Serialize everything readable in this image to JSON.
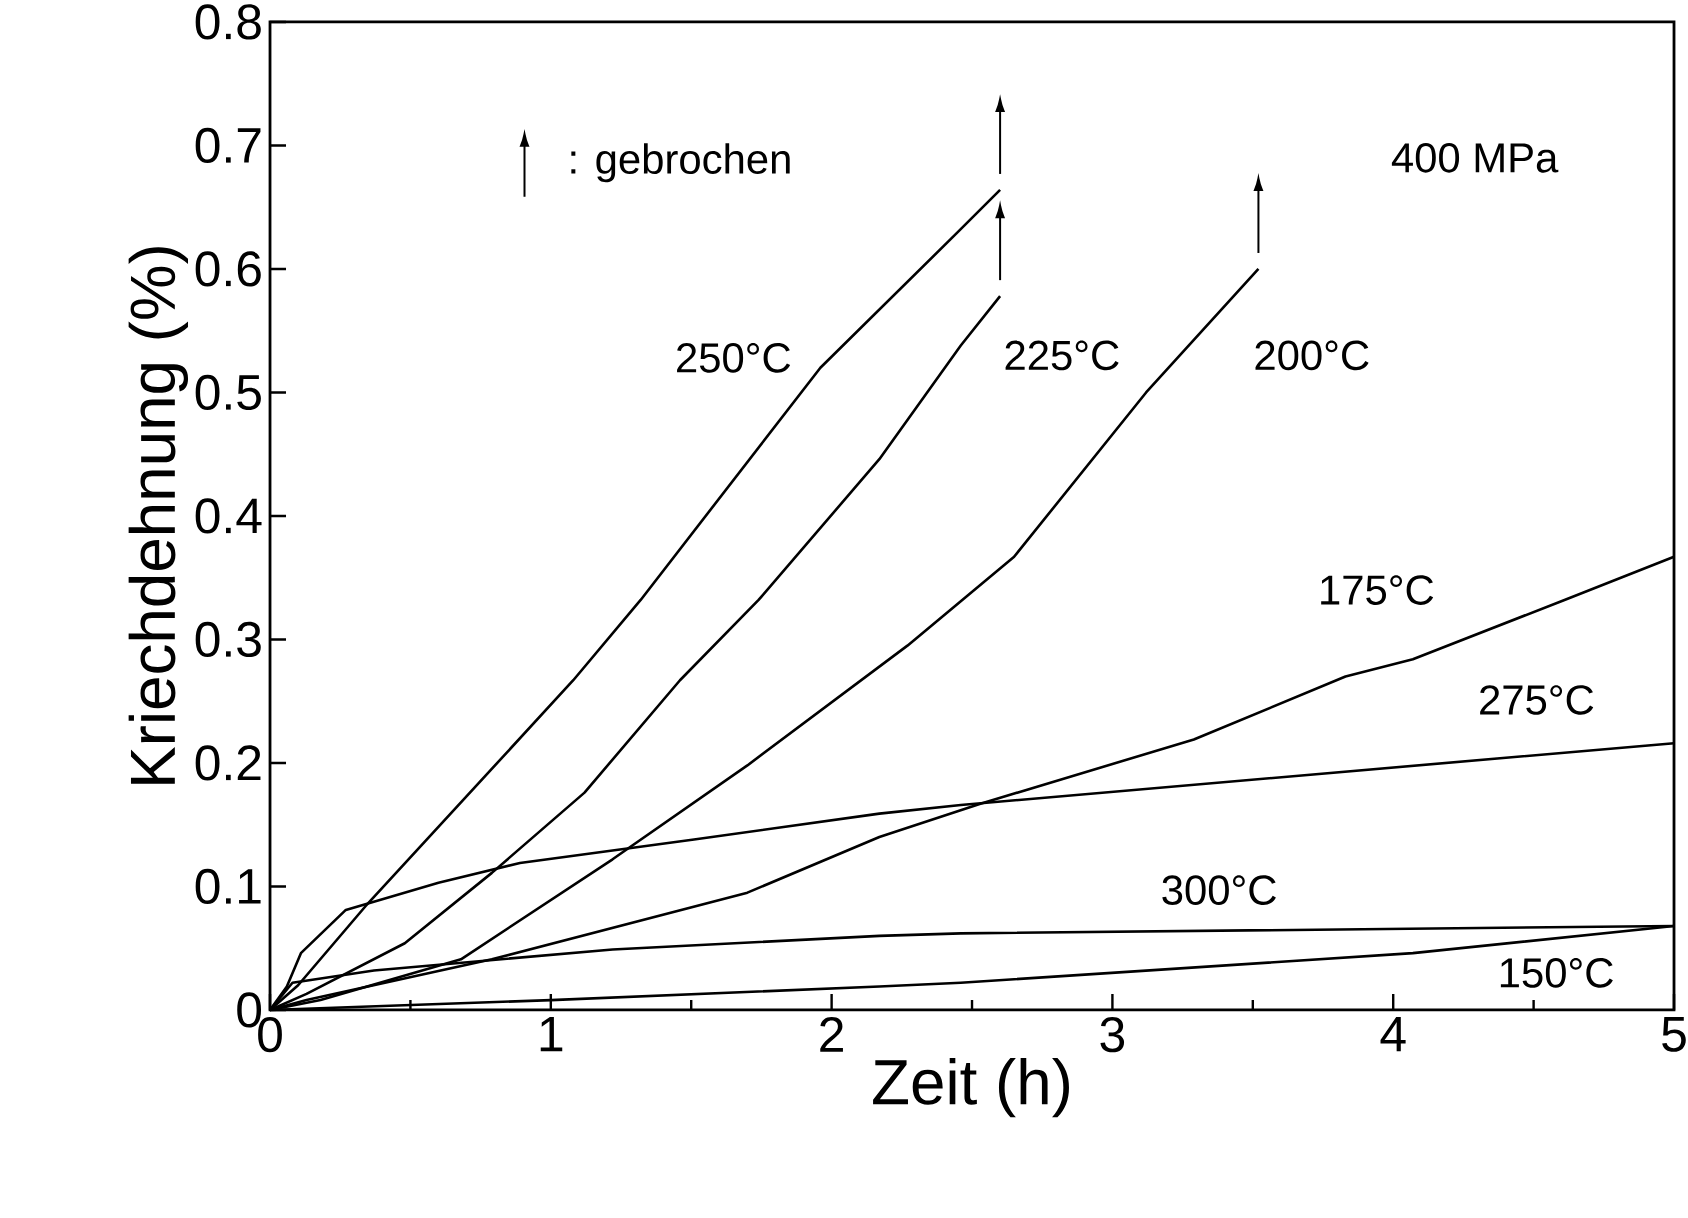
{
  "chart_data": {
    "type": "line",
    "xlabel": "Zeit (h)",
    "ylabel": "Kriechdehnung (%)",
    "xlim": [
      0,
      5
    ],
    "ylim": [
      0,
      0.8
    ],
    "xticks": [
      0,
      1,
      2,
      3,
      4,
      5
    ],
    "yticks": [
      0,
      0.1,
      0.2,
      0.3,
      0.4,
      0.5,
      0.6,
      0.7,
      0.8
    ],
    "grid": false,
    "marker": "none",
    "line_style": "solid",
    "annotations": [
      ": gebrochen",
      "400 MPa"
    ],
    "series": [
      {
        "name": "250°C",
        "color": "#000000",
        "x": [
          0,
          0.1,
          0.34,
          1.08,
          1.32,
          1.96,
          2.45,
          2.6
        ],
        "values": [
          0,
          0.02,
          0.084,
          0.267,
          0.332,
          0.52,
          0.63,
          0.664
        ]
      },
      {
        "name": "225°C",
        "color": "#000000",
        "x": [
          0,
          0.13,
          0.48,
          0.79,
          1.12,
          1.46,
          1.74,
          2.17,
          2.46,
          2.6
        ],
        "values": [
          0,
          0.013,
          0.054,
          0.111,
          0.176,
          0.267,
          0.332,
          0.446,
          0.538,
          0.578
        ]
      },
      {
        "name": "200°C",
        "color": "#000000",
        "x": [
          0,
          0.18,
          0.68,
          1.22,
          1.7,
          2.27,
          2.65,
          3.12,
          3.52
        ],
        "values": [
          0,
          0.008,
          0.041,
          0.122,
          0.198,
          0.295,
          0.367,
          0.5,
          0.6
        ]
      },
      {
        "name": "175°C",
        "color": "#000000",
        "x": [
          0,
          0.13,
          0.79,
          1.7,
          2.17,
          2.53,
          3.29,
          3.83,
          4.07,
          4.61,
          5
        ],
        "values": [
          0,
          0.008,
          0.041,
          0.095,
          0.14,
          0.167,
          0.219,
          0.27,
          0.284,
          0.332,
          0.367
        ]
      },
      {
        "name": "275°C",
        "color": "#000000",
        "x": [
          0,
          0.06,
          0.11,
          0.27,
          0.6,
          0.89,
          1.51,
          2.17,
          2.46,
          5
        ],
        "values": [
          0,
          0.019,
          0.046,
          0.081,
          0.103,
          0.119,
          0.138,
          0.159,
          0.166,
          0.216
        ]
      },
      {
        "name": "300°C",
        "color": "#000000",
        "x": [
          0,
          0.08,
          0.37,
          1.22,
          2.17,
          2.46,
          5
        ],
        "values": [
          0,
          0.022,
          0.032,
          0.049,
          0.06,
          0.062,
          0.068
        ]
      },
      {
        "name": "150°C",
        "color": "#000000",
        "x": [
          0,
          1.0,
          2.17,
          2.46,
          4.07,
          5
        ],
        "values": [
          0,
          0.008,
          0.019,
          0.022,
          0.046,
          0.068
        ]
      }
    ]
  }
}
